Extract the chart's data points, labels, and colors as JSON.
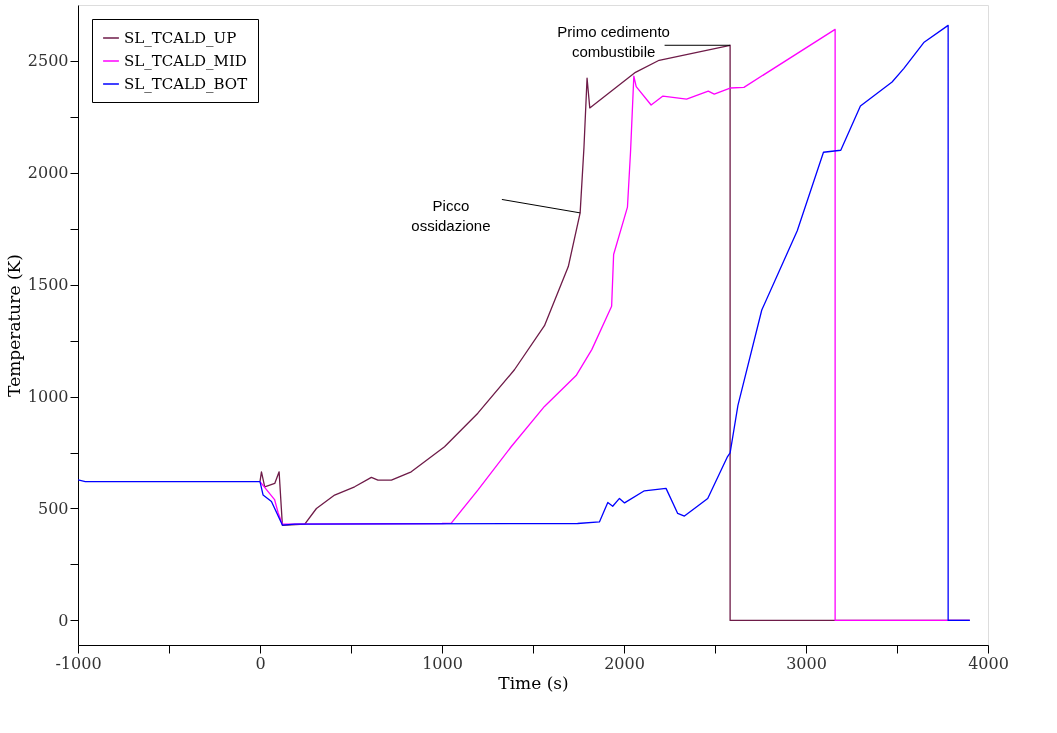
{
  "chart_data": {
    "type": "line",
    "xlabel": "Time (s)",
    "ylabel": "Temperature (K)",
    "xlim": [
      -1000,
      4000
    ],
    "ylim": [
      -110,
      2750
    ],
    "xticks": [
      -1000,
      {
        "value": -500,
        "label": null
      },
      0,
      {
        "value": 500,
        "label": null
      },
      1000,
      {
        "value": 1500,
        "label": null
      },
      2000,
      {
        "value": 2500,
        "label": null
      },
      3000,
      {
        "value": 3500,
        "label": null
      },
      4000
    ],
    "yticks": [
      0,
      {
        "value": 250,
        "label": null
      },
      500,
      {
        "value": 750,
        "label": null
      },
      1000,
      {
        "value": 1250,
        "label": null
      },
      1500,
      {
        "value": 1750,
        "label": null
      },
      2000,
      {
        "value": 2250,
        "label": null
      },
      2500
    ],
    "grid": false,
    "legend": "top left",
    "marker": "none",
    "line_style": "solid",
    "series": [
      {
        "name": "SL_TCALD_UP",
        "color": "#6e1b48",
        "x": [
          0,
          8,
          26,
          81,
          105,
          123,
          246,
          310,
          410,
          520,
          612,
          648,
          722,
          831,
          1014,
          1197,
          1398,
          1563,
          1694,
          1759,
          1780,
          1797,
          1812,
          2063,
          2193,
          2583,
          2583,
          3900
        ],
        "values": [
          620,
          664,
          597,
          612,
          664,
          425,
          430,
          500,
          560,
          597,
          639,
          627,
          627,
          664,
          776,
          926,
          1120,
          1317,
          1581,
          1821,
          2113,
          2423,
          2290,
          2449,
          2503,
          2570,
          0,
          0
        ]
      },
      {
        "name": "SL_TCALD_MID",
        "color": "#ff00ff",
        "x": [
          0,
          80,
          100,
          123,
          1000,
          1051,
          1197,
          1380,
          1563,
          1737,
          1823,
          1932,
          1943,
          2019,
          2036,
          2054,
          2067,
          2149,
          2214,
          2344,
          2463,
          2496,
          2583,
          2659,
          3160,
          3160,
          3900
        ],
        "values": [
          620,
          540,
          480,
          430,
          433,
          435,
          582,
          776,
          956,
          1094,
          1210,
          1404,
          1635,
          1847,
          2095,
          2432,
          2385,
          2303,
          2343,
          2329,
          2365,
          2352,
          2379,
          2382,
          2641,
          0,
          0
        ]
      },
      {
        "name": "SL_TCALD_BOT",
        "color": "#0000ff",
        "x": [
          -1000,
          -960,
          0,
          17,
          63,
          123,
          191,
          1745,
          1865,
          1911,
          1938,
          1975,
          2003,
          2112,
          2231,
          2295,
          2332,
          2460,
          2569,
          2583,
          2626,
          2757,
          2952,
          3096,
          3191,
          3299,
          3473,
          3538,
          3647,
          3781,
          3781,
          3900
        ],
        "values": [
          628,
          620,
          620,
          560,
          531,
          426,
          430,
          433,
          440,
          527,
          510,
          545,
          525,
          579,
          590,
          478,
          466,
          545,
          732,
          749,
          961,
          1387,
          1741,
          2092,
          2101,
          2299,
          2406,
          2467,
          2582,
          2659,
          0,
          0
        ]
      }
    ],
    "annotations": [
      {
        "text": "Primo cedimento\ncombustibile",
        "x": 2583,
        "y": 2570
      },
      {
        "text": "Picco\nossidazione",
        "x": 1759,
        "y": 1821
      }
    ]
  }
}
